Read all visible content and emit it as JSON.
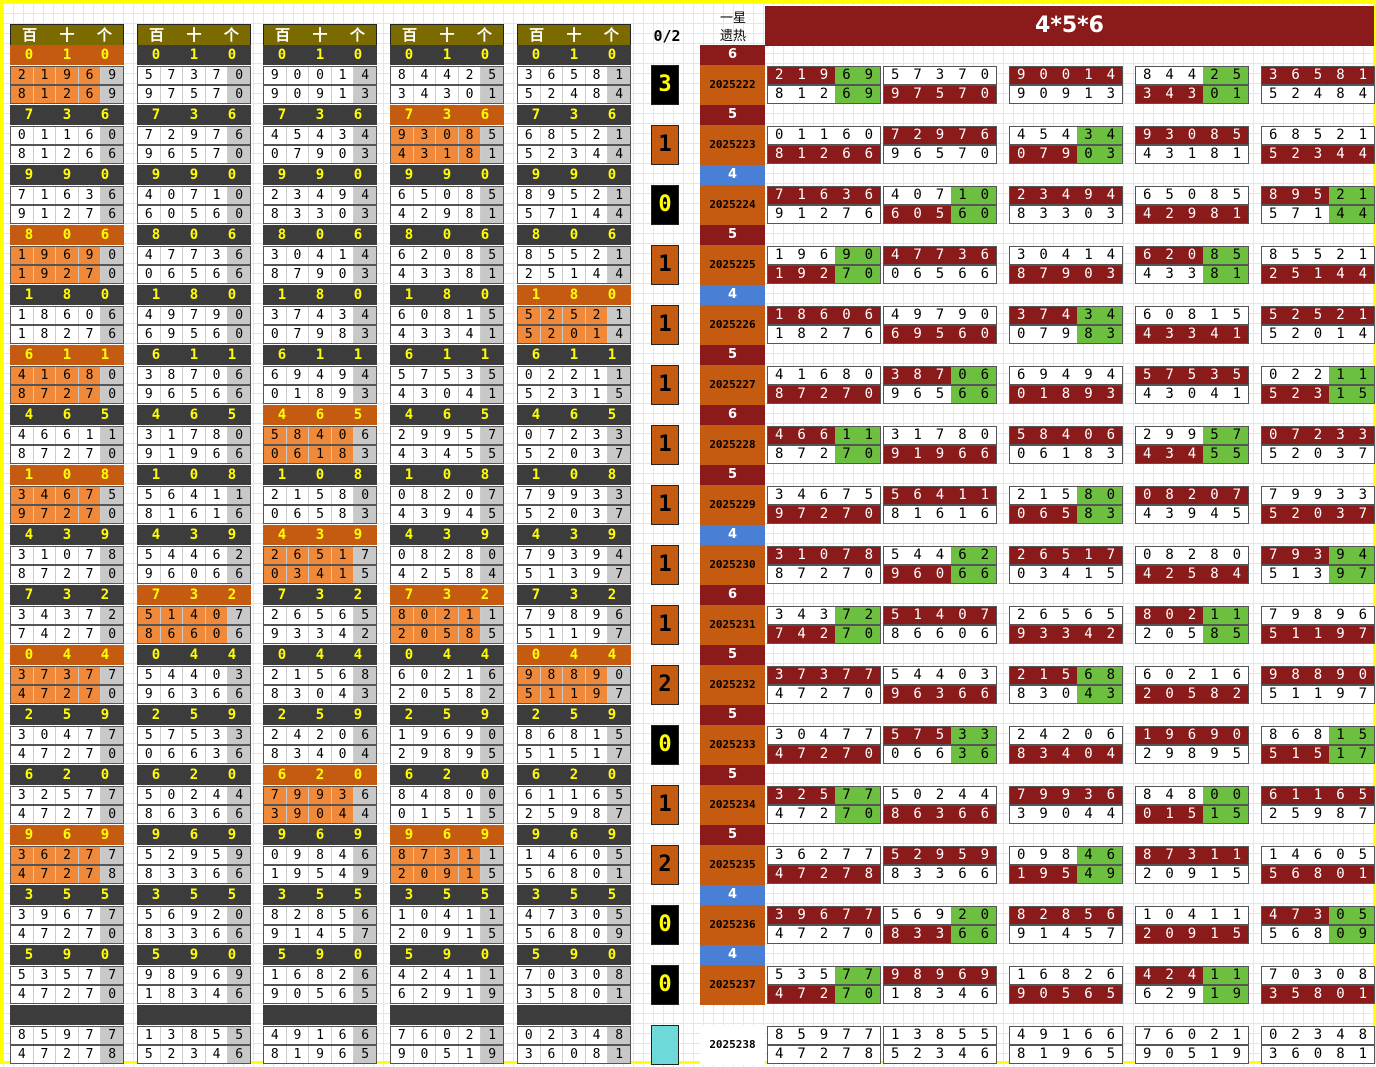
{
  "title": "4*5*6",
  "ratio_label": "0/2",
  "star_label_1": "一星",
  "star_label_2": "遗热",
  "headers": [
    "百",
    "十",
    "个"
  ],
  "rows": [
    {
      "t": [
        "0",
        "1",
        "0"
      ],
      "hot": "6",
      "hc": "m",
      "period": "2025222",
      "count": "3",
      "cc": "k",
      "orange": [
        0
      ],
      "groups": [
        [
          "21969",
          "81269"
        ],
        [
          "57370",
          "97570"
        ],
        [
          "90014",
          "90913"
        ],
        [
          "84425",
          "34301"
        ],
        [
          "36581",
          "52484"
        ]
      ],
      "right": [
        [
          "21969",
          "81269"
        ],
        [
          "57370",
          "97570"
        ],
        [
          "90014",
          "90913"
        ],
        [
          "84425",
          "34301"
        ],
        [
          "36581",
          "52484"
        ]
      ]
    },
    {
      "t": [
        "7",
        "3",
        "6"
      ],
      "hot": "5",
      "hc": "m",
      "period": "2025223",
      "count": "1",
      "cc": "o",
      "orange": [
        3
      ],
      "groups": [
        [
          "01160",
          "81266"
        ],
        [
          "72976",
          "96570"
        ],
        [
          "45434",
          "07903"
        ],
        [
          "93085",
          "43181"
        ],
        [
          "68521",
          "52344"
        ]
      ],
      "right": [
        [
          "01160",
          "81266"
        ],
        [
          "72976",
          "96570"
        ],
        [
          "45434",
          "07903"
        ],
        [
          "93085",
          "43181"
        ],
        [
          "68521",
          "52344"
        ]
      ]
    },
    {
      "t": [
        "9",
        "9",
        "0"
      ],
      "hot": "4",
      "hc": "b",
      "period": "2025224",
      "count": "0",
      "cc": "k",
      "orange": [],
      "groups": [
        [
          "71636",
          "91276"
        ],
        [
          "40710",
          "60560"
        ],
        [
          "23494",
          "83303"
        ],
        [
          "65085",
          "42981"
        ],
        [
          "89521",
          "57144"
        ]
      ],
      "right": [
        [
          "71636",
          "91276"
        ],
        [
          "40710",
          "60560"
        ],
        [
          "23494",
          "83303"
        ],
        [
          "65085",
          "42981"
        ],
        [
          "89521",
          "57144"
        ]
      ]
    },
    {
      "t": [
        "8",
        "0",
        "6"
      ],
      "hot": "5",
      "hc": "m",
      "period": "2025225",
      "count": "1",
      "cc": "o",
      "orange": [
        0
      ],
      "groups": [
        [
          "19690",
          "19270"
        ],
        [
          "47736",
          "06566"
        ],
        [
          "30414",
          "87903"
        ],
        [
          "62085",
          "43381"
        ],
        [
          "85521",
          "25144"
        ]
      ],
      "right": [
        [
          "19690",
          "19270"
        ],
        [
          "47736",
          "06566"
        ],
        [
          "30414",
          "87903"
        ],
        [
          "62085",
          "43381"
        ],
        [
          "85521",
          "25144"
        ]
      ]
    },
    {
      "t": [
        "1",
        "8",
        "0"
      ],
      "hot": "4",
      "hc": "b",
      "period": "2025226",
      "count": "1",
      "cc": "o",
      "orange": [
        4
      ],
      "groups": [
        [
          "18606",
          "18276"
        ],
        [
          "49790",
          "69560"
        ],
        [
          "37434",
          "07983"
        ],
        [
          "60815",
          "43341"
        ],
        [
          "52521",
          "52014"
        ]
      ],
      "right": [
        [
          "18606",
          "18276"
        ],
        [
          "49790",
          "69560"
        ],
        [
          "37434",
          "07983"
        ],
        [
          "60815",
          "43341"
        ],
        [
          "52521",
          "52014"
        ]
      ]
    },
    {
      "t": [
        "6",
        "1",
        "1"
      ],
      "hot": "5",
      "hc": "m",
      "period": "2025227",
      "count": "1",
      "cc": "o",
      "orange": [
        0
      ],
      "groups": [
        [
          "41680",
          "87270"
        ],
        [
          "38706",
          "96566"
        ],
        [
          "69494",
          "01893"
        ],
        [
          "57535",
          "43041"
        ],
        [
          "02211",
          "52315"
        ]
      ],
      "right": [
        [
          "41680",
          "87270"
        ],
        [
          "38706",
          "96566"
        ],
        [
          "69494",
          "01893"
        ],
        [
          "57535",
          "43041"
        ],
        [
          "02211",
          "52315"
        ]
      ]
    },
    {
      "t": [
        "4",
        "6",
        "5"
      ],
      "hot": "6",
      "hc": "m",
      "period": "2025228",
      "count": "1",
      "cc": "o",
      "orange": [
        2
      ],
      "groups": [
        [
          "46611",
          "87270"
        ],
        [
          "31780",
          "91966"
        ],
        [
          "58406",
          "06183"
        ],
        [
          "29957",
          "43455"
        ],
        [
          "07233",
          "52037"
        ]
      ],
      "right": [
        [
          "46611",
          "87270"
        ],
        [
          "31780",
          "91966"
        ],
        [
          "58406",
          "06183"
        ],
        [
          "29957",
          "43455"
        ],
        [
          "07233",
          "52037"
        ]
      ]
    },
    {
      "t": [
        "1",
        "0",
        "8"
      ],
      "hot": "5",
      "hc": "m",
      "period": "2025229",
      "count": "1",
      "cc": "o",
      "orange": [
        0
      ],
      "groups": [
        [
          "34675",
          "97270"
        ],
        [
          "56411",
          "81616"
        ],
        [
          "21580",
          "06583"
        ],
        [
          "08207",
          "43945"
        ],
        [
          "79933",
          "52037"
        ]
      ],
      "right": [
        [
          "34675",
          "97270"
        ],
        [
          "56411",
          "81616"
        ],
        [
          "21580",
          "06583"
        ],
        [
          "08207",
          "43945"
        ],
        [
          "79933",
          "52037"
        ]
      ]
    },
    {
      "t": [
        "4",
        "3",
        "9"
      ],
      "hot": "4",
      "hc": "b",
      "period": "2025230",
      "count": "1",
      "cc": "o",
      "orange": [
        2
      ],
      "groups": [
        [
          "31078",
          "87270"
        ],
        [
          "54462",
          "96066"
        ],
        [
          "26517",
          "03415"
        ],
        [
          "08280",
          "42584"
        ],
        [
          "79394",
          "51397"
        ]
      ],
      "right": [
        [
          "31078",
          "87270"
        ],
        [
          "54462",
          "96066"
        ],
        [
          "26517",
          "03415"
        ],
        [
          "08280",
          "42584"
        ],
        [
          "79394",
          "51397"
        ]
      ]
    },
    {
      "t": [
        "7",
        "3",
        "2"
      ],
      "hot": "6",
      "hc": "m",
      "period": "2025231",
      "count": "1",
      "cc": "o",
      "orange": [
        1,
        3
      ],
      "groups": [
        [
          "34372",
          "74270"
        ],
        [
          "51407",
          "86606"
        ],
        [
          "26565",
          "93342"
        ],
        [
          "80211",
          "20585"
        ],
        [
          "79896",
          "51197"
        ]
      ],
      "right": [
        [
          "34372",
          "74270"
        ],
        [
          "51407",
          "86606"
        ],
        [
          "26565",
          "93342"
        ],
        [
          "80211",
          "20585"
        ],
        [
          "79896",
          "51197"
        ]
      ]
    },
    {
      "t": [
        "0",
        "4",
        "4"
      ],
      "hot": "5",
      "hc": "m",
      "period": "2025232",
      "count": "2",
      "cc": "o",
      "orange": [
        0,
        4
      ],
      "groups": [
        [
          "37377",
          "47270"
        ],
        [
          "54403",
          "96366"
        ],
        [
          "21568",
          "83043"
        ],
        [
          "60216",
          "20582"
        ],
        [
          "98890",
          "51197"
        ]
      ],
      "right": [
        [
          "37377",
          "47270"
        ],
        [
          "54403",
          "96366"
        ],
        [
          "21568",
          "83043"
        ],
        [
          "60216",
          "20582"
        ],
        [
          "98890",
          "51197"
        ]
      ]
    },
    {
      "t": [
        "2",
        "5",
        "9"
      ],
      "hot": "5",
      "hc": "m",
      "period": "2025233",
      "count": "0",
      "cc": "k",
      "orange": [],
      "groups": [
        [
          "30477",
          "47270"
        ],
        [
          "57533",
          "06636"
        ],
        [
          "24206",
          "83404"
        ],
        [
          "19690",
          "29895"
        ],
        [
          "86815",
          "51517"
        ]
      ],
      "right": [
        [
          "30477",
          "47270"
        ],
        [
          "57533",
          "06636"
        ],
        [
          "24206",
          "83404"
        ],
        [
          "19690",
          "29895"
        ],
        [
          "86815",
          "51517"
        ]
      ]
    },
    {
      "t": [
        "6",
        "2",
        "0"
      ],
      "hot": "5",
      "hc": "m",
      "period": "2025234",
      "count": "1",
      "cc": "o",
      "orange": [
        2
      ],
      "groups": [
        [
          "32577",
          "47270"
        ],
        [
          "50244",
          "86366"
        ],
        [
          "79936",
          "39044"
        ],
        [
          "84800",
          "01515"
        ],
        [
          "61165",
          "25987"
        ]
      ],
      "right": [
        [
          "32577",
          "47270"
        ],
        [
          "50244",
          "86366"
        ],
        [
          "79936",
          "39044"
        ],
        [
          "84800",
          "01515"
        ],
        [
          "61165",
          "25987"
        ]
      ]
    },
    {
      "t": [
        "9",
        "6",
        "9"
      ],
      "hot": "5",
      "hc": "m",
      "period": "2025235",
      "count": "2",
      "cc": "o",
      "orange": [
        0,
        3
      ],
      "groups": [
        [
          "36277",
          "47278"
        ],
        [
          "52959",
          "83366"
        ],
        [
          "09846",
          "19549"
        ],
        [
          "87311",
          "20915"
        ],
        [
          "14605",
          "56801"
        ]
      ],
      "right": [
        [
          "36277",
          "47278"
        ],
        [
          "52959",
          "83366"
        ],
        [
          "09846",
          "19549"
        ],
        [
          "87311",
          "20915"
        ],
        [
          "14605",
          "56801"
        ]
      ]
    },
    {
      "t": [
        "3",
        "5",
        "5"
      ],
      "hot": "4",
      "hc": "b",
      "period": "2025236",
      "count": "0",
      "cc": "k",
      "orange": [],
      "groups": [
        [
          "39677",
          "47270"
        ],
        [
          "56920",
          "83366"
        ],
        [
          "82856",
          "91457"
        ],
        [
          "10411",
          "20915"
        ],
        [
          "47305",
          "56809"
        ]
      ],
      "right": [
        [
          "39677",
          "47270"
        ],
        [
          "56920",
          "83366"
        ],
        [
          "82856",
          "91457"
        ],
        [
          "10411",
          "20915"
        ],
        [
          "47305",
          "56809"
        ]
      ]
    },
    {
      "t": [
        "5",
        "9",
        "0"
      ],
      "hot": "4",
      "hc": "b",
      "period": "2025237",
      "count": "0",
      "cc": "k",
      "orange": [],
      "groups": [
        [
          "53577",
          "47270"
        ],
        [
          "98969",
          "18346"
        ],
        [
          "16826",
          "90565"
        ],
        [
          "42411",
          "62919"
        ],
        [
          "70308",
          "35801"
        ]
      ],
      "right": [
        [
          "53577",
          "47270"
        ],
        [
          "98969",
          "18346"
        ],
        [
          "16826",
          "90565"
        ],
        [
          "42411",
          "62919"
        ],
        [
          "70308",
          "35801"
        ]
      ]
    },
    {
      "t": [
        "",
        "",
        ""
      ],
      "hot": "",
      "hc": "",
      "period": "2025238",
      "count": "",
      "cc": "t",
      "orange": [],
      "groups": [
        [
          "85977",
          "47278"
        ],
        [
          "13855",
          "52346"
        ],
        [
          "49166",
          "81965"
        ],
        [
          "76021",
          "90519"
        ],
        [
          "02348",
          "36081"
        ]
      ],
      "right": [
        [
          "85977",
          "47278"
        ],
        [
          "13855",
          "52346"
        ],
        [
          "49166",
          "81965"
        ],
        [
          "76021",
          "90519"
        ],
        [
          "02348",
          "36081"
        ]
      ]
    }
  ]
}
